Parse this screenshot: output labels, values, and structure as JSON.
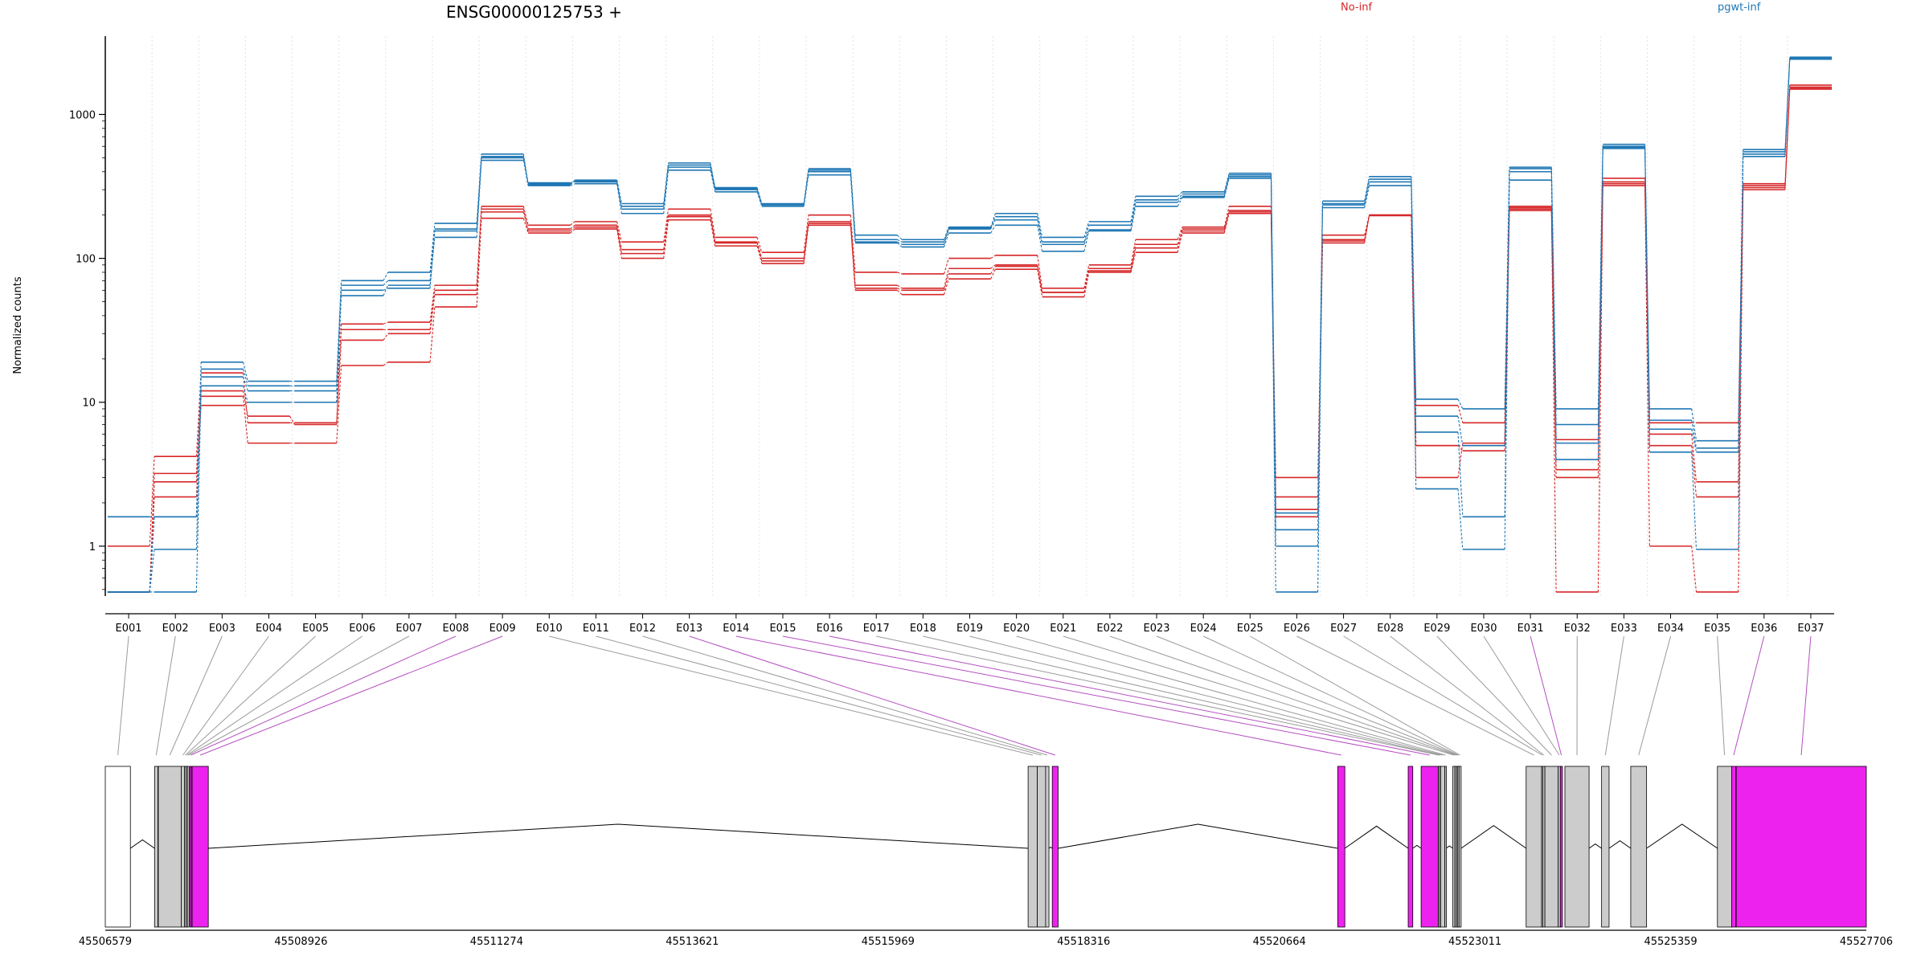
{
  "chart_data": {
    "type": "line",
    "title": "ENSG00000125753 +",
    "ylabel": "Normalized counts",
    "xlabel": "",
    "y_scale": "log",
    "ylim": [
      0.45,
      3500
    ],
    "y_ticks": [
      1,
      10,
      100,
      1000
    ],
    "y_tick_labels": [
      "1",
      "10",
      "100",
      "1000"
    ],
    "legend_placement": "top-right",
    "grid": "vertical dotted lines at exon boundaries",
    "categories": [
      "E001",
      "E002",
      "E003",
      "E004",
      "E005",
      "E006",
      "E007",
      "E008",
      "E009",
      "E010",
      "E011",
      "E012",
      "E013",
      "E014",
      "E015",
      "E016",
      "E017",
      "E018",
      "E019",
      "E020",
      "E021",
      "E022",
      "E023",
      "E024",
      "E025",
      "E026",
      "E027",
      "E028",
      "E029",
      "E030",
      "E031",
      "E032",
      "E033",
      "E034",
      "E035",
      "E036",
      "E037"
    ],
    "groups": [
      {
        "name": "No-inf",
        "color": "#d62728"
      },
      {
        "name": "pgwt-inf",
        "color": "#1f77b4"
      }
    ],
    "series": [
      {
        "group": "No-inf",
        "values": [
          1.0,
          4.2,
          16,
          7.2,
          7.2,
          35,
          36,
          65,
          230,
          170,
          180,
          130,
          220,
          140,
          110,
          200,
          80,
          78,
          100,
          105,
          62,
          90,
          135,
          165,
          230,
          3.0,
          145,
          200,
          9.5,
          7.2,
          230,
          5.5,
          360,
          7.2,
          7.2,
          330,
          1600
        ]
      },
      {
        "group": "No-inf",
        "values": [
          0.48,
          3.2,
          12,
          8.0,
          7.0,
          27,
          30,
          56,
          210,
          160,
          170,
          115,
          200,
          130,
          100,
          180,
          65,
          62,
          85,
          90,
          58,
          85,
          125,
          155,
          215,
          2.2,
          135,
          200,
          5.0,
          5.0,
          220,
          0.48,
          330,
          6.0,
          2.8,
          310,
          1550
        ]
      },
      {
        "group": "No-inf",
        "values": [
          0.48,
          2.2,
          11,
          5.2,
          5.2,
          18,
          19,
          46,
          190,
          150,
          160,
          100,
          185,
          122,
          92,
          170,
          60,
          56,
          72,
          84,
          54,
          80,
          110,
          150,
          205,
          1.6,
          128,
          200,
          3.0,
          5.2,
          215,
          3.0,
          320,
          1.0,
          0.48,
          300,
          1500
        ]
      },
      {
        "group": "No-inf",
        "values": [
          0.48,
          2.8,
          9.5,
          10,
          10,
          32,
          32,
          60,
          220,
          155,
          165,
          108,
          195,
          128,
          96,
          175,
          62,
          60,
          78,
          88,
          58,
          82,
          118,
          160,
          210,
          1.8,
          132,
          198,
          5.0,
          4.6,
          225,
          3.4,
          340,
          5.0,
          2.2,
          320,
          1520
        ]
      },
      {
        "group": "pgwt-inf",
        "values": [
          1.6,
          1.6,
          19,
          14,
          14,
          70,
          80,
          175,
          530,
          330,
          350,
          240,
          460,
          310,
          240,
          420,
          145,
          135,
          165,
          205,
          140,
          180,
          270,
          290,
          390,
          1.7,
          250,
          370,
          10.5,
          9.0,
          430,
          9.0,
          620,
          9.0,
          5.4,
          570,
          2500
        ]
      },
      {
        "group": "pgwt-inf",
        "values": [
          0.48,
          0.95,
          15,
          12,
          12,
          60,
          62,
          155,
          500,
          335,
          340,
          220,
          430,
          300,
          235,
          400,
          130,
          125,
          160,
          185,
          125,
          158,
          245,
          270,
          370,
          1.0,
          235,
          340,
          6.2,
          1.6,
          400,
          5.2,
          590,
          6.5,
          4.5,
          530,
          2450
        ]
      },
      {
        "group": "pgwt-inf",
        "values": [
          0.48,
          0.48,
          13,
          10,
          10,
          55,
          65,
          140,
          480,
          320,
          330,
          205,
          410,
          290,
          230,
          380,
          128,
          120,
          150,
          170,
          112,
          155,
          230,
          265,
          360,
          0.48,
          225,
          320,
          2.5,
          0.95,
          350,
          4.0,
          580,
          4.5,
          0.95,
          510,
          2420
        ]
      },
      {
        "group": "pgwt-inf",
        "values": [
          0.48,
          1.6,
          17,
          13,
          13,
          65,
          70,
          160,
          510,
          325,
          345,
          230,
          445,
          305,
          238,
          410,
          135,
          130,
          162,
          195,
          130,
          170,
          255,
          280,
          380,
          1.3,
          240,
          355,
          8.0,
          5.0,
          420,
          7.0,
          600,
          7.5,
          4.8,
          550,
          2480
        ]
      }
    ]
  },
  "gene_model": {
    "coordinate_labels": [
      "45506579",
      "45508926",
      "45511274",
      "45513621",
      "45515969",
      "45518316",
      "45520664",
      "45523011",
      "45525359",
      "45527706"
    ],
    "coord_min": 45506579,
    "coord_max": 45527706,
    "colors": {
      "exon_default": "#cccccc",
      "exon_highlight": "#ee22ee",
      "exon_utr": "#ffffff",
      "outline": "#000000",
      "connector_default": "#9a9a9a",
      "connector_highlight": "#b44fc0",
      "intron_line": "#000000"
    },
    "exons": [
      {
        "id": "E001",
        "start": 45506579,
        "end": 45506880,
        "kind": "utr"
      },
      {
        "id": "E002",
        "start": 45507170,
        "end": 45507210,
        "kind": "default"
      },
      {
        "id": "E003",
        "start": 45507215,
        "end": 45507490,
        "kind": "default"
      },
      {
        "id": "E004",
        "start": 45507490,
        "end": 45507530,
        "kind": "default"
      },
      {
        "id": "E005",
        "start": 45507530,
        "end": 45507550,
        "kind": "default"
      },
      {
        "id": "E006",
        "start": 45507550,
        "end": 45507565,
        "kind": "default"
      },
      {
        "id": "E007",
        "start": 45507565,
        "end": 45507585,
        "kind": "default"
      },
      {
        "id": "E008",
        "start": 45507595,
        "end": 45507615,
        "kind": "highlight"
      },
      {
        "id": "E009",
        "start": 45507620,
        "end": 45507815,
        "kind": "highlight"
      },
      {
        "id": "E010",
        "start": 45517650,
        "end": 45517760,
        "kind": "default"
      },
      {
        "id": "E011",
        "start": 45517760,
        "end": 45517860,
        "kind": "default"
      },
      {
        "id": "E012",
        "start": 45517860,
        "end": 45517900,
        "kind": "default"
      },
      {
        "id": "E013",
        "start": 45517940,
        "end": 45518010,
        "kind": "highlight"
      },
      {
        "id": "E014",
        "start": 45521365,
        "end": 45521450,
        "kind": "highlight"
      },
      {
        "id": "E015",
        "start": 45522210,
        "end": 45522265,
        "kind": "highlight"
      },
      {
        "id": "E016",
        "start": 45522365,
        "end": 45522570,
        "kind": "highlight"
      },
      {
        "id": "E017",
        "start": 45522570,
        "end": 45522585,
        "kind": "default"
      },
      {
        "id": "E018",
        "start": 45522585,
        "end": 45522600,
        "kind": "default"
      },
      {
        "id": "E019",
        "start": 45522600,
        "end": 45522650,
        "kind": "default"
      },
      {
        "id": "E020",
        "start": 45522650,
        "end": 45522665,
        "kind": "default"
      },
      {
        "id": "E021",
        "start": 45522745,
        "end": 45522770,
        "kind": "default"
      },
      {
        "id": "E022",
        "start": 45522770,
        "end": 45522790,
        "kind": "default"
      },
      {
        "id": "E023",
        "start": 45522790,
        "end": 45522805,
        "kind": "default"
      },
      {
        "id": "E024",
        "start": 45522805,
        "end": 45522820,
        "kind": "default"
      },
      {
        "id": "E025",
        "start": 45522820,
        "end": 45522845,
        "kind": "default"
      },
      {
        "id": "E026",
        "start": 45523625,
        "end": 45523810,
        "kind": "default"
      },
      {
        "id": "E027",
        "start": 45523810,
        "end": 45523825,
        "kind": "default"
      },
      {
        "id": "E028",
        "start": 45523825,
        "end": 45523850,
        "kind": "default"
      },
      {
        "id": "E029",
        "start": 45523850,
        "end": 45524010,
        "kind": "default"
      },
      {
        "id": "E030",
        "start": 45524010,
        "end": 45524035,
        "kind": "default"
      },
      {
        "id": "E031",
        "start": 45524035,
        "end": 45524060,
        "kind": "highlight"
      },
      {
        "id": "E032",
        "start": 45524090,
        "end": 45524380,
        "kind": "default"
      },
      {
        "id": "E033",
        "start": 45524530,
        "end": 45524620,
        "kind": "default"
      },
      {
        "id": "E034",
        "start": 45524880,
        "end": 45525070,
        "kind": "default"
      },
      {
        "id": "E035",
        "start": 45525920,
        "end": 45526090,
        "kind": "default"
      },
      {
        "id": "E036",
        "start": 45526090,
        "end": 45526140,
        "kind": "highlight"
      },
      {
        "id": "E037",
        "start": 45526145,
        "end": 45527706,
        "kind": "highlight"
      }
    ]
  }
}
